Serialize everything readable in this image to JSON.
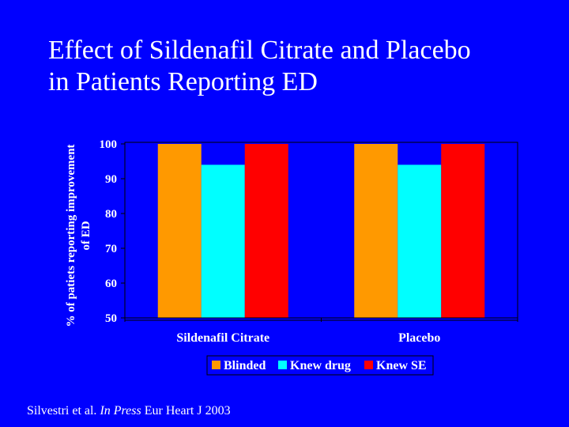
{
  "slide": {
    "title_line1": "Effect of Sildenafil Citrate and Placebo",
    "title_line2": "in Patients Reporting ED",
    "footer_authors": "Silvestri et al. ",
    "footer_italic": "In Press",
    "footer_journal": " Eur Heart J 2003"
  },
  "colors": {
    "background": "#0000ff",
    "blinded": "#ff9900",
    "knew_drug": "#00ffff",
    "knew_se": "#ff0000",
    "text": "#ffffff"
  },
  "chart_data": {
    "type": "bar",
    "categories": [
      "Sildenafil Citrate",
      "Placebo"
    ],
    "series": [
      {
        "name": "Blinded",
        "values": [
          100,
          100
        ]
      },
      {
        "name": "Knew drug",
        "values": [
          94,
          94
        ]
      },
      {
        "name": "Knew SE",
        "values": [
          100,
          100
        ]
      }
    ],
    "ylabel_line1": "% of patiets reporting improvement",
    "ylabel_line2": "of ED",
    "ylim": [
      50,
      100
    ],
    "yticks": [
      100,
      90,
      80,
      70,
      60,
      50
    ],
    "grid": false,
    "legend_position": "bottom"
  }
}
